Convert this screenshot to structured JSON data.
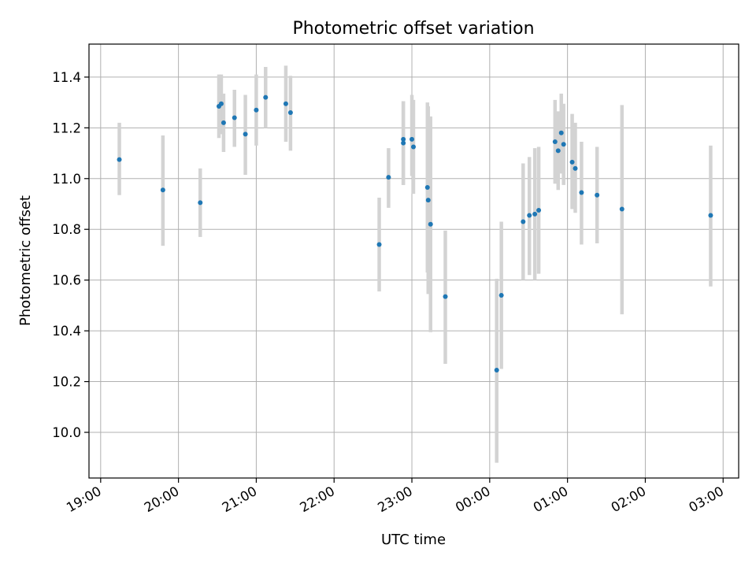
{
  "chart_data": {
    "type": "scatter",
    "title": "Photometric offset variation",
    "xlabel": "UTC time",
    "ylabel": "Photometric offset",
    "grid": true,
    "x_unit": "hours since 19:00 UTC",
    "xlim": [
      -0.15,
      8.2
    ],
    "ylim": [
      9.82,
      11.53
    ],
    "x_ticks": [
      {
        "value": 0,
        "label": "19:00"
      },
      {
        "value": 1,
        "label": "20:00"
      },
      {
        "value": 2,
        "label": "21:00"
      },
      {
        "value": 3,
        "label": "22:00"
      },
      {
        "value": 4,
        "label": "23:00"
      },
      {
        "value": 5,
        "label": "00:00"
      },
      {
        "value": 6,
        "label": "01:00"
      },
      {
        "value": 7,
        "label": "02:00"
      },
      {
        "value": 8,
        "label": "03:00"
      }
    ],
    "y_ticks": [
      {
        "value": 10.0,
        "label": "10.0"
      },
      {
        "value": 10.2,
        "label": "10.2"
      },
      {
        "value": 10.4,
        "label": "10.4"
      },
      {
        "value": 10.6,
        "label": "10.6"
      },
      {
        "value": 10.8,
        "label": "10.8"
      },
      {
        "value": 11.0,
        "label": "11.0"
      },
      {
        "value": 11.2,
        "label": "11.2"
      },
      {
        "value": 11.4,
        "label": "11.4"
      }
    ],
    "colors": {
      "point": "#1f77b4",
      "errorbar": "#d3d3d3",
      "grid": "#b0b0b0",
      "axis": "#000000"
    },
    "points": [
      {
        "x": 0.24,
        "y": 11.075,
        "lo": 10.935,
        "hi": 11.22
      },
      {
        "x": 0.8,
        "y": 10.955,
        "lo": 10.735,
        "hi": 11.17
      },
      {
        "x": 1.28,
        "y": 10.905,
        "lo": 10.77,
        "hi": 11.04
      },
      {
        "x": 1.52,
        "y": 11.285,
        "lo": 11.16,
        "hi": 11.41
      },
      {
        "x": 1.55,
        "y": 11.295,
        "lo": 11.175,
        "hi": 11.41
      },
      {
        "x": 1.58,
        "y": 11.22,
        "lo": 11.105,
        "hi": 11.335
      },
      {
        "x": 1.72,
        "y": 11.24,
        "lo": 11.125,
        "hi": 11.35
      },
      {
        "x": 1.86,
        "y": 11.175,
        "lo": 11.015,
        "hi": 11.33
      },
      {
        "x": 2.0,
        "y": 11.27,
        "lo": 11.13,
        "hi": 11.41
      },
      {
        "x": 2.12,
        "y": 11.32,
        "lo": 11.2,
        "hi": 11.44
      },
      {
        "x": 2.38,
        "y": 11.295,
        "lo": 11.145,
        "hi": 11.445
      },
      {
        "x": 2.44,
        "y": 11.26,
        "lo": 11.11,
        "hi": 11.405
      },
      {
        "x": 3.58,
        "y": 10.74,
        "lo": 10.555,
        "hi": 10.925
      },
      {
        "x": 3.7,
        "y": 11.005,
        "lo": 10.885,
        "hi": 11.12
      },
      {
        "x": 3.89,
        "y": 11.155,
        "lo": 10.975,
        "hi": 11.305
      },
      {
        "x": 3.89,
        "y": 11.14,
        "lo": 10.975,
        "hi": 11.305
      },
      {
        "x": 4.0,
        "y": 11.155,
        "lo": 11.01,
        "hi": 11.33
      },
      {
        "x": 4.02,
        "y": 11.125,
        "lo": 10.94,
        "hi": 11.31
      },
      {
        "x": 4.2,
        "y": 10.965,
        "lo": 10.63,
        "hi": 11.3
      },
      {
        "x": 4.21,
        "y": 10.915,
        "lo": 10.545,
        "hi": 11.285
      },
      {
        "x": 4.24,
        "y": 10.82,
        "lo": 10.395,
        "hi": 11.245
      },
      {
        "x": 4.43,
        "y": 10.535,
        "lo": 10.27,
        "hi": 10.795
      },
      {
        "x": 5.09,
        "y": 10.245,
        "lo": 9.88,
        "hi": 10.605
      },
      {
        "x": 5.15,
        "y": 10.54,
        "lo": 10.25,
        "hi": 10.83
      },
      {
        "x": 5.43,
        "y": 10.83,
        "lo": 10.6,
        "hi": 11.06
      },
      {
        "x": 5.51,
        "y": 10.855,
        "lo": 10.62,
        "hi": 11.085
      },
      {
        "x": 5.58,
        "y": 10.86,
        "lo": 10.6,
        "hi": 11.12
      },
      {
        "x": 5.63,
        "y": 10.875,
        "lo": 10.625,
        "hi": 11.125
      },
      {
        "x": 5.84,
        "y": 11.145,
        "lo": 10.98,
        "hi": 11.31
      },
      {
        "x": 5.88,
        "y": 11.11,
        "lo": 10.955,
        "hi": 11.265
      },
      {
        "x": 5.92,
        "y": 11.18,
        "lo": 11.02,
        "hi": 11.335
      },
      {
        "x": 5.95,
        "y": 11.135,
        "lo": 10.975,
        "hi": 11.295
      },
      {
        "x": 6.06,
        "y": 11.065,
        "lo": 10.88,
        "hi": 11.255
      },
      {
        "x": 6.1,
        "y": 11.04,
        "lo": 10.865,
        "hi": 11.22
      },
      {
        "x": 6.18,
        "y": 10.945,
        "lo": 10.74,
        "hi": 11.145
      },
      {
        "x": 6.38,
        "y": 10.935,
        "lo": 10.745,
        "hi": 11.125
      },
      {
        "x": 6.7,
        "y": 10.88,
        "lo": 10.465,
        "hi": 11.29
      },
      {
        "x": 7.84,
        "y": 10.855,
        "lo": 10.575,
        "hi": 11.13
      }
    ]
  }
}
